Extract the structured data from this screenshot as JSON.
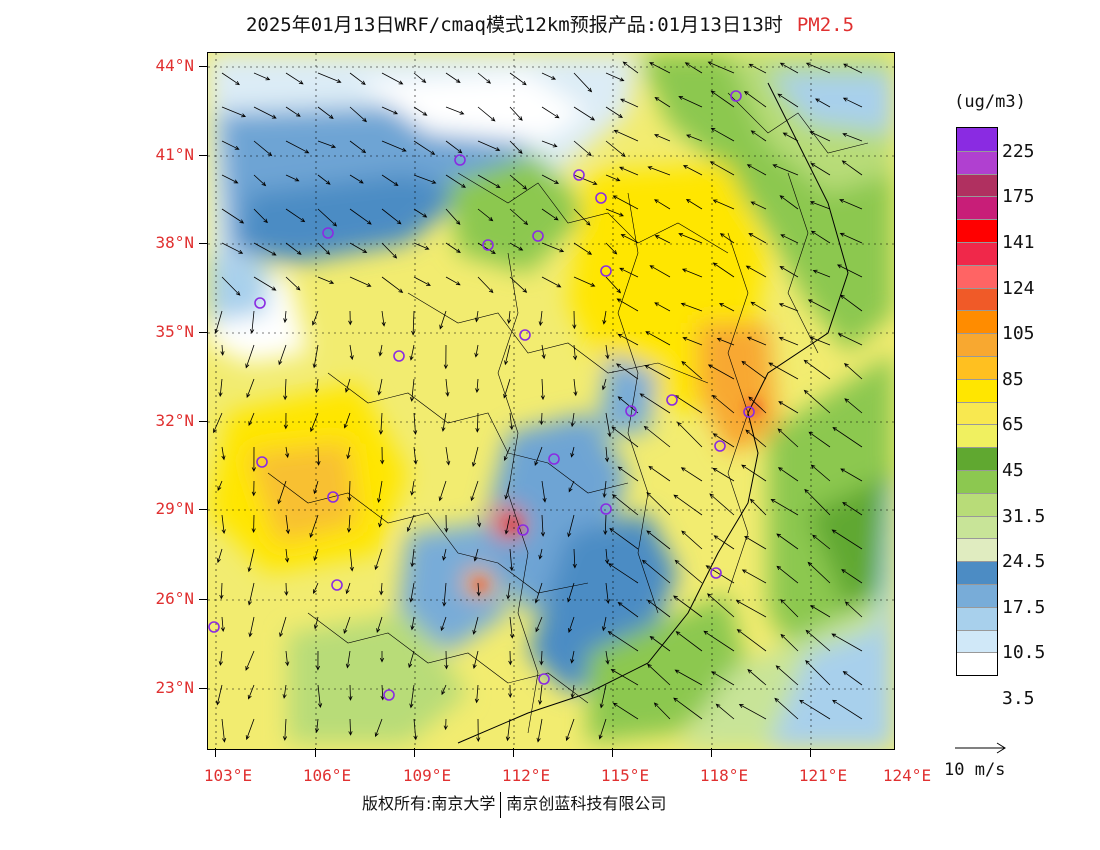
{
  "title": {
    "main": "2025年01月13日WRF/cmaq模式12km预报产品:01月13日13时",
    "variable": "PM2.5"
  },
  "latitude_labels": [
    "44°N",
    "41°N",
    "38°N",
    "35°N",
    "32°N",
    "29°N",
    "26°N",
    "23°N"
  ],
  "longitude_labels": [
    "103°E",
    "106°E",
    "109°E",
    "112°E",
    "115°E",
    "118°E",
    "121°E",
    "124°E"
  ],
  "colorbar": {
    "unit": "(ug/m3)",
    "labels": [
      "225",
      "175",
      "141",
      "124",
      "105",
      "85",
      "65",
      "45",
      "31.5",
      "24.5",
      "17.5",
      "10.5",
      "3.5"
    ],
    "colors": [
      "#8a2be2",
      "#b040d0",
      "#b03060",
      "#c81e78",
      "#ff0000",
      "#f0284a",
      "#ff6464",
      "#f05a28",
      "#ff8c00",
      "#f8a830",
      "#ffc020",
      "#ffe600",
      "#f8e850",
      "#f0f060",
      "#60a830",
      "#8cc850",
      "#b8dc78",
      "#c8e498",
      "#e0ecc0",
      "#4c8cc4",
      "#78acd8",
      "#a8d0ec",
      "#d0e8f8",
      "#ffffff"
    ]
  },
  "wind_legend": {
    "label": "10 m/s"
  },
  "footer": {
    "copyright": "版权所有:南京大学",
    "company": "南京创蓝科技有限公司"
  }
}
